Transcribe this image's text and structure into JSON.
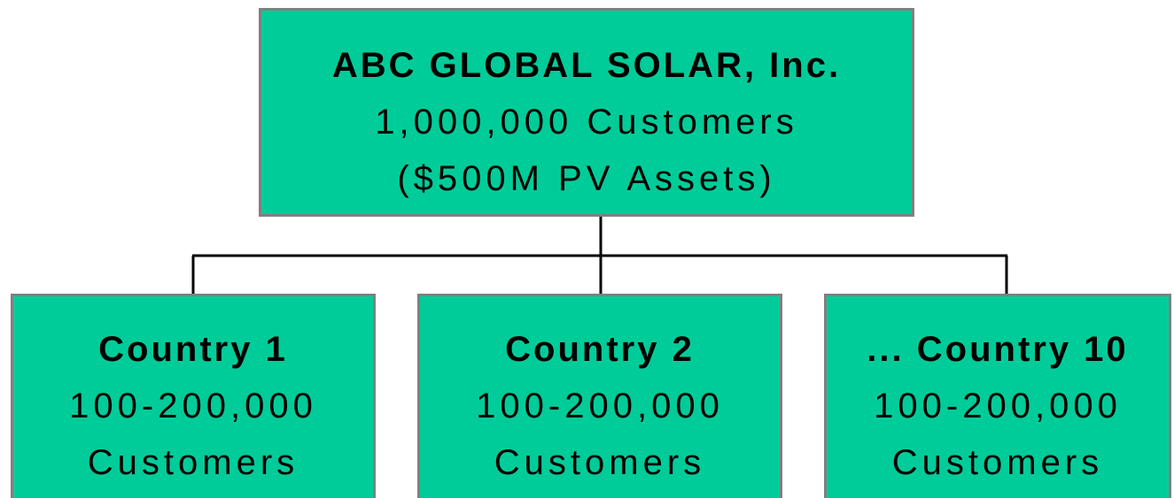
{
  "root": {
    "title": "ABC GLOBAL SOLAR, Inc.",
    "lines": [
      "1,000,000 Customers",
      "($500M PV Assets)"
    ]
  },
  "nodes": [
    {
      "title": "Country 1",
      "lines": [
        "100-200,000",
        "Customers"
      ]
    },
    {
      "title": "Country 2",
      "lines": [
        "100-200,000",
        "Customers"
      ]
    },
    {
      "title": "... Country 10",
      "lines": [
        "100-200,000",
        "Customers"
      ]
    }
  ]
}
